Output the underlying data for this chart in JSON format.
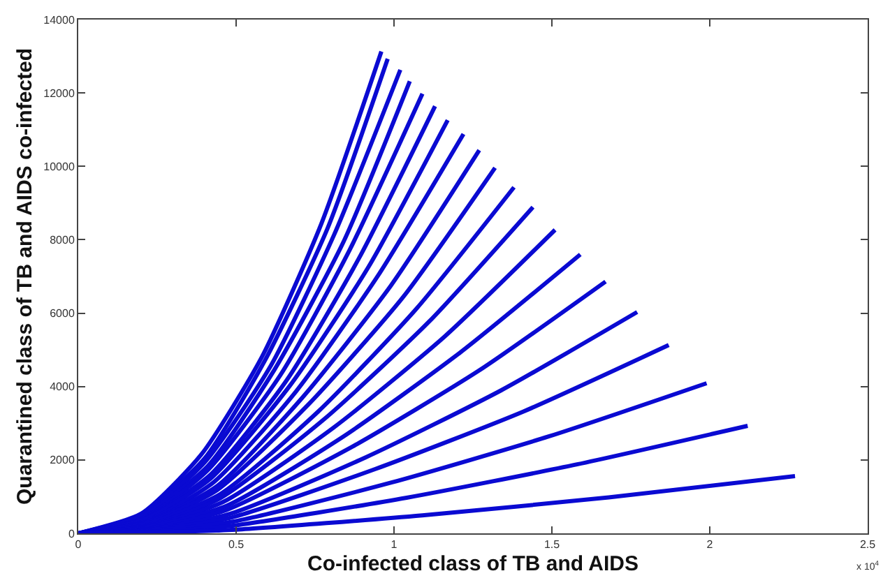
{
  "chart_data": {
    "type": "line",
    "xlabel": "Co-infected class of TB and AIDS",
    "ylabel": "Quarantined class of TB and AIDS co-infected",
    "annotations": [
      "x 10$^{4}$"
    ],
    "xlim": [
      0,
      2.5
    ],
    "ylim": [
      0,
      14000
    ],
    "xticks": [
      0,
      0.5,
      1,
      1.5,
      2,
      2.5
    ],
    "yticks": [
      0,
      2000,
      4000,
      6000,
      8000,
      10000,
      12000,
      14000
    ],
    "marker": "none",
    "line_style": "solid",
    "series": [
      {
        "color": "#0a0ad2",
        "x": [
          0,
          0.2,
          0.39,
          0.58,
          0.77,
          0.96
        ],
        "values": [
          0,
          540,
          2150,
          4780,
          8440,
          13130
        ]
      },
      {
        "color": "#0a0ad2",
        "x": [
          0,
          0.2,
          0.4,
          0.59,
          0.79,
          0.98
        ],
        "values": [
          0,
          510,
          2040,
          4690,
          8320,
          12930
        ]
      },
      {
        "color": "#0a0ad2",
        "x": [
          0,
          0.2,
          0.4,
          0.61,
          0.81,
          1.02
        ],
        "values": [
          0,
          480,
          1930,
          4570,
          8130,
          12630
        ]
      },
      {
        "color": "#0a0ad2",
        "x": [
          0,
          0.2,
          0.41,
          0.62,
          0.84,
          1.05
        ],
        "values": [
          0,
          460,
          1830,
          4440,
          7940,
          12320
        ]
      },
      {
        "color": "#0a0ad2",
        "x": [
          0,
          0.21,
          0.41,
          0.64,
          0.86,
          1.09
        ],
        "values": [
          0,
          430,
          1720,
          4310,
          7730,
          11980
        ]
      },
      {
        "color": "#0a0ad2",
        "x": [
          0,
          0.21,
          0.42,
          0.66,
          0.89,
          1.13
        ],
        "values": [
          0,
          400,
          1610,
          4170,
          7510,
          11640
        ]
      },
      {
        "color": "#0a0ad2",
        "x": [
          0,
          0.21,
          0.42,
          0.67,
          0.92,
          1.17
        ],
        "values": [
          0,
          380,
          1500,
          4020,
          7270,
          11260
        ]
      },
      {
        "color": "#0a0ad2",
        "x": [
          0,
          0.22,
          0.43,
          0.69,
          0.95,
          1.22
        ],
        "values": [
          0,
          350,
          1400,
          3870,
          7030,
          10880
        ]
      },
      {
        "color": "#0a0ad2",
        "x": [
          0,
          0.22,
          0.44,
          0.71,
          0.99,
          1.27
        ],
        "values": [
          0,
          320,
          1290,
          3700,
          6750,
          10440
        ]
      },
      {
        "color": "#0a0ad2",
        "x": [
          0,
          0.22,
          0.44,
          0.73,
          1.03,
          1.32
        ],
        "values": [
          0,
          300,
          1180,
          3520,
          6450,
          9960
        ]
      },
      {
        "color": "#0a0ad2",
        "x": [
          0,
          0.22,
          0.45,
          0.76,
          1.07,
          1.38
        ],
        "values": [
          0,
          270,
          1070,
          3320,
          6110,
          9430
        ]
      },
      {
        "color": "#0a0ad2",
        "x": [
          0,
          0.23,
          0.45,
          0.78,
          1.11,
          1.44
        ],
        "values": [
          0,
          240,
          960,
          3120,
          5760,
          8890
        ]
      },
      {
        "color": "#0a0ad2",
        "x": [
          0,
          0.23,
          0.46,
          0.81,
          1.16,
          1.51
        ],
        "values": [
          0,
          210,
          860,
          2890,
          5360,
          8270
        ]
      },
      {
        "color": "#0a0ad2",
        "x": [
          0,
          0.23,
          0.47,
          0.84,
          1.21,
          1.59
        ],
        "values": [
          0,
          190,
          750,
          2640,
          4930,
          7600
        ]
      },
      {
        "color": "#0a0ad2",
        "x": [
          0,
          0.24,
          0.47,
          0.87,
          1.27,
          1.67
        ],
        "values": [
          0,
          160,
          640,
          2370,
          4440,
          6860
        ]
      },
      {
        "color": "#0a0ad2",
        "x": [
          0,
          0.24,
          0.48,
          0.91,
          1.34,
          1.77
        ],
        "values": [
          0,
          130,
          530,
          2070,
          3900,
          6030
        ]
      },
      {
        "color": "#0a0ad2",
        "x": [
          0,
          0.24,
          0.48,
          0.94,
          1.41,
          1.87
        ],
        "values": [
          0,
          110,
          420,
          1750,
          3320,
          5130
        ]
      },
      {
        "color": "#0a0ad2",
        "x": [
          0,
          0.24,
          0.49,
          0.99,
          1.49,
          1.99
        ],
        "values": [
          0,
          80,
          320,
          1380,
          2640,
          4090
        ]
      },
      {
        "color": "#0a0ad2",
        "x": [
          0,
          0.25,
          0.49,
          1.04,
          1.58,
          2.12
        ],
        "values": [
          0,
          50,
          210,
          970,
          1880,
          2930
        ]
      },
      {
        "color": "#0a0ad2",
        "x": [
          0,
          0.25,
          0.5,
          1.09,
          1.68,
          2.27
        ],
        "values": [
          0,
          30,
          100,
          490,
          980,
          1560
        ]
      }
    ]
  }
}
